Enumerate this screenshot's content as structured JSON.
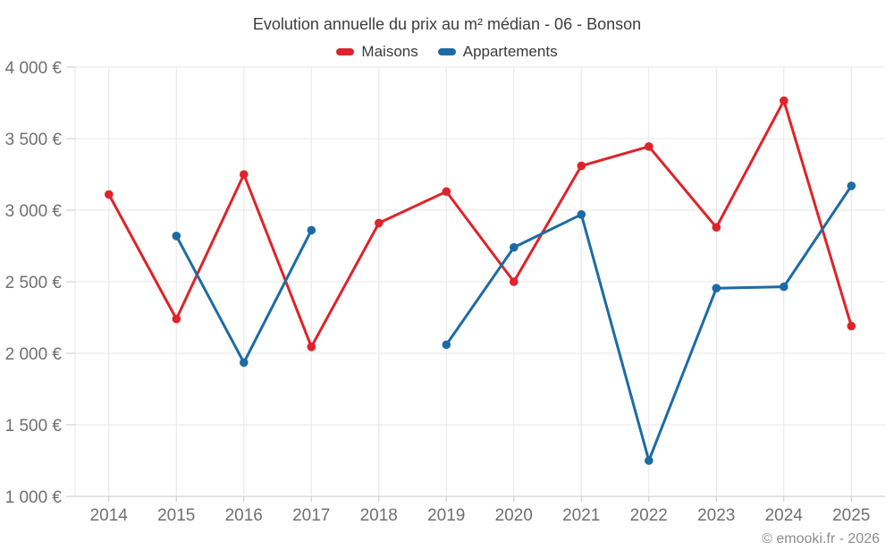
{
  "chart": {
    "title": "Evolution annuelle du prix au m² médian - 06 - Bonson"
  },
  "footer": {
    "copyright": "© emooki.fr - 2026"
  },
  "colors": {
    "maisons_red": "#e02229",
    "appartements_blue": "#1c6ba5",
    "grid": "#e7e7e7",
    "axis": "#c9c9c9",
    "tick_text": "#707070",
    "title_text": "#3d3d3d",
    "footer_text": "#8d8d8d"
  },
  "chart_data": {
    "type": "line",
    "title": "Evolution annuelle du prix au m² médian - 06 - Bonson",
    "xlabel": "",
    "ylabel": "",
    "x": [
      2014,
      2015,
      2016,
      2017,
      2018,
      2019,
      2020,
      2021,
      2022,
      2023,
      2024,
      2025
    ],
    "series": [
      {
        "name": "Maisons",
        "color": "#e02229",
        "values": [
          3110,
          2240,
          3250,
          2045,
          2910,
          3130,
          2500,
          3310,
          3445,
          2880,
          3765,
          2190
        ]
      },
      {
        "name": "Appartements",
        "color": "#1c6ba5",
        "values": [
          null,
          2820,
          1935,
          2860,
          null,
          2060,
          2740,
          2970,
          1250,
          2455,
          2465,
          3170
        ]
      }
    ],
    "ylim": [
      1000,
      4000
    ],
    "y_ticks": [
      1000,
      1500,
      2000,
      2500,
      3000,
      3500,
      4000
    ],
    "y_tick_labels": [
      "1 000 €",
      "1 500 €",
      "2 000 €",
      "2 500 €",
      "3 000 €",
      "3 500 €",
      "4 000 €"
    ],
    "grid": true,
    "legend_position": "top-center",
    "marker": "circle"
  }
}
